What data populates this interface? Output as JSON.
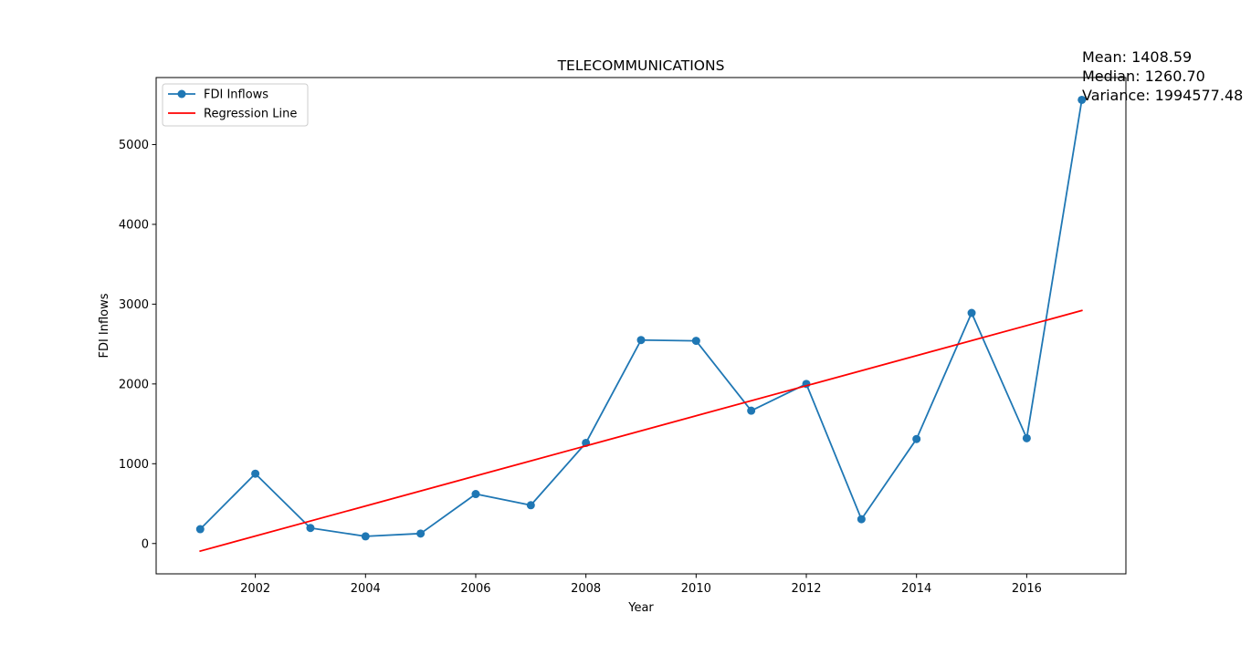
{
  "chart_data": {
    "type": "line",
    "title": "TELECOMMUNICATIONS",
    "xlabel": "Year",
    "ylabel": "FDI Inflows",
    "xlim": [
      2000.2,
      2017.8
    ],
    "ylim": [
      -380,
      5840
    ],
    "x_ticks": [
      2002,
      2004,
      2006,
      2008,
      2010,
      2012,
      2014,
      2016
    ],
    "y_ticks": [
      0,
      1000,
      2000,
      3000,
      4000,
      5000
    ],
    "legend_position": "top-left",
    "grid": false,
    "series": [
      {
        "name": "FDI Inflows",
        "kind": "line-marker",
        "color": "#1f77b4",
        "x": [
          2001,
          2002,
          2003,
          2004,
          2005,
          2006,
          2007,
          2008,
          2009,
          2010,
          2011,
          2012,
          2013,
          2014,
          2015,
          2016,
          2017
        ],
        "y": [
          180,
          875,
          195,
          90,
          125,
          620,
          480,
          1261,
          2550,
          2540,
          1665,
          2000,
          305,
          1310,
          2890,
          1320,
          5560
        ]
      },
      {
        "name": "Regression Line",
        "kind": "line",
        "color": "#ff0000",
        "x": [
          2001,
          2017
        ],
        "y": [
          -95,
          2920
        ]
      }
    ],
    "annotations": {
      "mean": "Mean: 1408.59",
      "median": "Median: 1260.70",
      "variance": "Variance: 1994577.48"
    }
  }
}
